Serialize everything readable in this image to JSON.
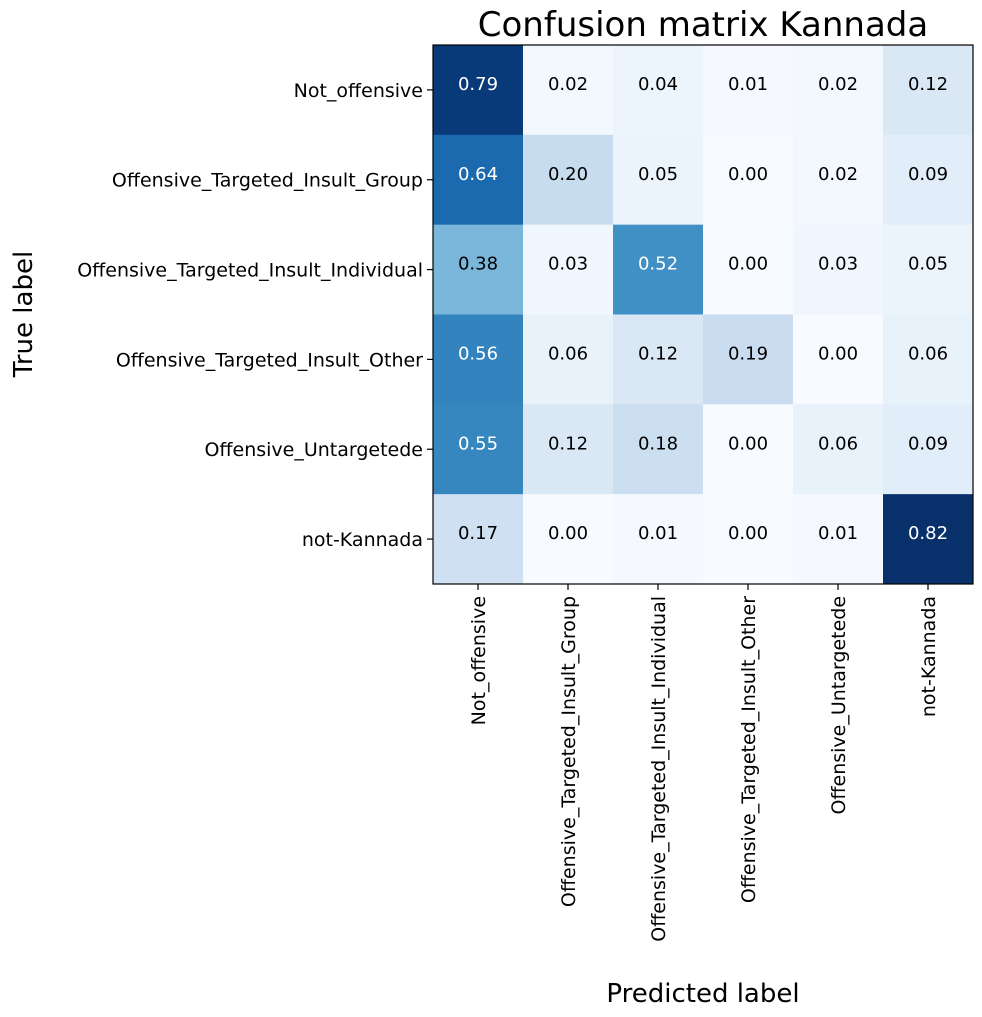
{
  "chart_data": {
    "type": "heatmap",
    "title": "Confusion matrix Kannada",
    "xlabel": "Predicted label",
    "ylabel": "True label",
    "row_labels": [
      "Not_offensive",
      "Offensive_Targeted_Insult_Group",
      "Offensive_Targeted_Insult_Individual",
      "Offensive_Targeted_Insult_Other",
      "Offensive_Untargetede",
      "not-Kannada"
    ],
    "col_labels": [
      "Not_offensive",
      "Offensive_Targeted_Insult_Group",
      "Offensive_Targeted_Insult_Individual",
      "Offensive_Targeted_Insult_Other",
      "Offensive_Untargetede",
      "not-Kannada"
    ],
    "values": [
      [
        0.79,
        0.02,
        0.04,
        0.01,
        0.02,
        0.12
      ],
      [
        0.64,
        0.2,
        0.05,
        0.0,
        0.02,
        0.09
      ],
      [
        0.38,
        0.03,
        0.52,
        0.0,
        0.03,
        0.05
      ],
      [
        0.56,
        0.06,
        0.12,
        0.19,
        0.0,
        0.06
      ],
      [
        0.55,
        0.12,
        0.18,
        0.0,
        0.06,
        0.09
      ],
      [
        0.17,
        0.0,
        0.01,
        0.0,
        0.01,
        0.82
      ]
    ],
    "value_format": "0.00",
    "colormap": "Blues",
    "grid": false,
    "legend": "none"
  }
}
